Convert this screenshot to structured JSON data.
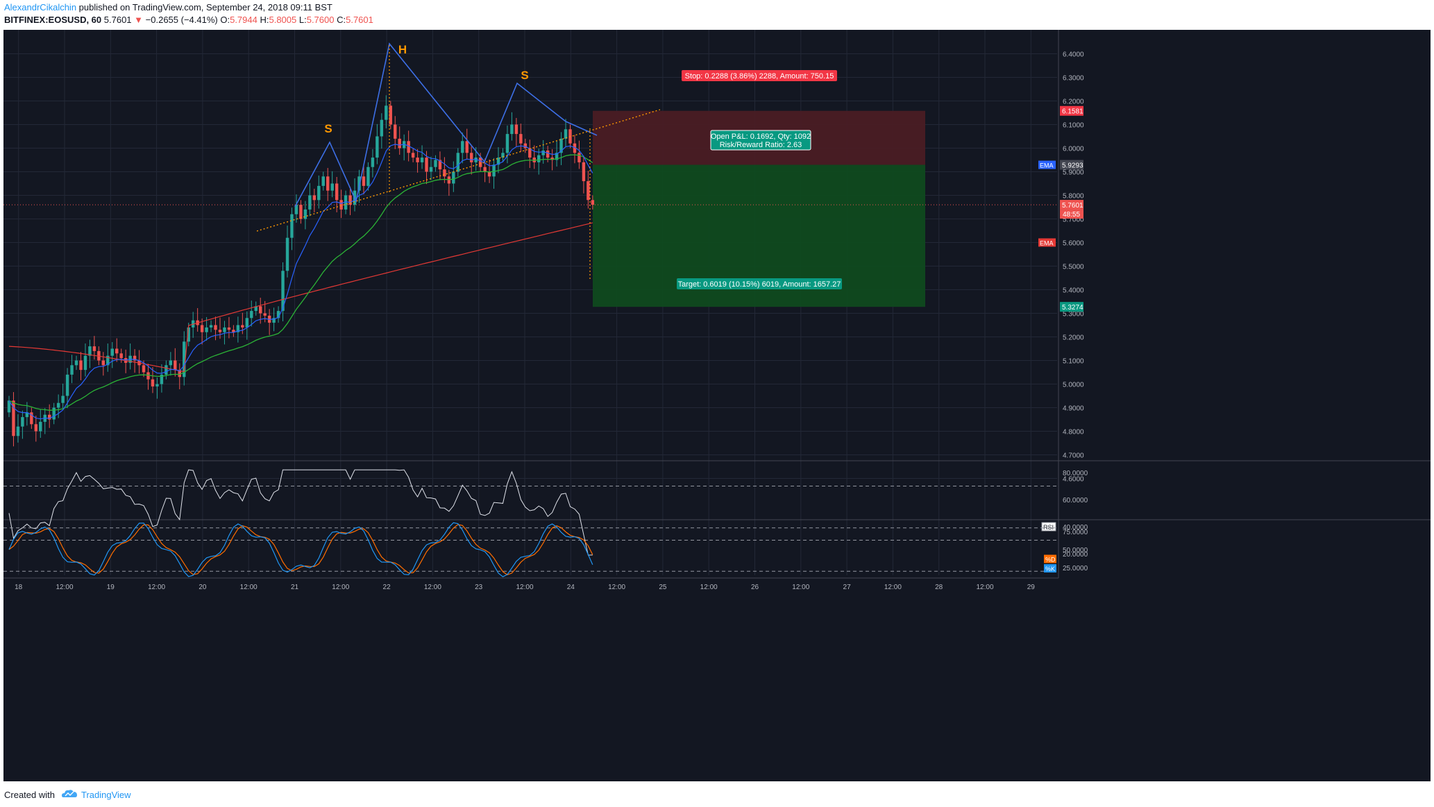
{
  "header": {
    "author": "AlexandrCikalchin",
    "published": " published on TradingView.com, September 24, 2018 09:11 BST",
    "symbol": "BITFINEX:EOSUSD, 60",
    "last": "5.7601",
    "change_arrow": "▼",
    "change": "−0.2655 (−4.41%)",
    "o_label": "O:",
    "o": "5.7944",
    "h_label": "H:",
    "h": "5.8005",
    "l_label": "L:",
    "l": "5.7600",
    "c_label": "C:",
    "c": "5.7601"
  },
  "price_axis": {
    "ticks": [
      "6.4000",
      "6.3000",
      "6.2000",
      "6.1000",
      "6.0000",
      "5.9000",
      "5.8000",
      "5.7000",
      "5.6000",
      "5.5000",
      "5.4000",
      "5.3000",
      "5.2000",
      "5.1000",
      "5.0000",
      "4.9000",
      "4.8000",
      "4.7000",
      "4.6000"
    ],
    "tick_values": [
      6.4,
      6.3,
      6.2,
      6.1,
      6.0,
      5.9,
      5.8,
      5.7,
      5.6,
      5.5,
      5.4,
      5.3,
      5.2,
      5.1,
      5.0,
      4.9,
      4.8,
      4.7,
      4.6
    ],
    "badges": {
      "stop": "6.1581",
      "ema_fast": "5.9293",
      "last_price": "5.7601",
      "countdown": "48:55",
      "target": "5.3274"
    },
    "ema_label": "EMA",
    "ema_label_2": "EMA"
  },
  "time_axis": {
    "labels": [
      "18",
      "12:00",
      "19",
      "12:00",
      "20",
      "12:00",
      "21",
      "12:00",
      "22",
      "12:00",
      "23",
      "12:00",
      "24",
      "12:00",
      "25",
      "12:00",
      "26",
      "12:00",
      "27",
      "12:00",
      "28",
      "12:00",
      "29"
    ]
  },
  "pattern_labels": {
    "left_shoulder": "S",
    "head": "H",
    "right_shoulder": "S"
  },
  "position": {
    "type": "short",
    "entry": 5.9293,
    "stop": 6.1581,
    "target": 5.3274,
    "stop_label": "Stop: 0.2288 (3.86%) 2288, Amount: 750.15",
    "target_label": "Target: 0.6019 (10.15%) 6019, Amount: 1657.27",
    "pnl_label": "Open P&L: 0.1692, Qty: 1092",
    "rr_label": "Risk/Reward Ratio: 2.63",
    "colors": {
      "risk": "#4a1c24",
      "reward": "#0f4a1f",
      "stop_badge": "#f23645",
      "target_badge": "#089981"
    }
  },
  "rsi": {
    "label": "RSI",
    "ticks": [
      "80.0000",
      "60.0000",
      "40.0000",
      "20.0000"
    ],
    "tick_values": [
      80,
      60,
      40,
      20
    ],
    "upper": 70,
    "lower": 30
  },
  "stoch": {
    "label_d": "%D",
    "label_k": "%K",
    "ticks": [
      "75.0000",
      "50.0000",
      "25.0000"
    ],
    "tick_values": [
      75,
      50,
      25
    ],
    "upper": 80,
    "lower": 20
  },
  "colors": {
    "up": "#26a69a",
    "down": "#ef5350",
    "ema_fast": "#2962ff",
    "ema_mid": "#2bb336",
    "ema_slow": "#e53935",
    "pattern": "#3d6fe6",
    "trend": "#ff9800",
    "rsi": "#e0e3eb",
    "stoch_k": "#2196f3",
    "stoch_d": "#ff6d00"
  },
  "footer": {
    "created": "Created with",
    "brand": "TradingView"
  }
}
